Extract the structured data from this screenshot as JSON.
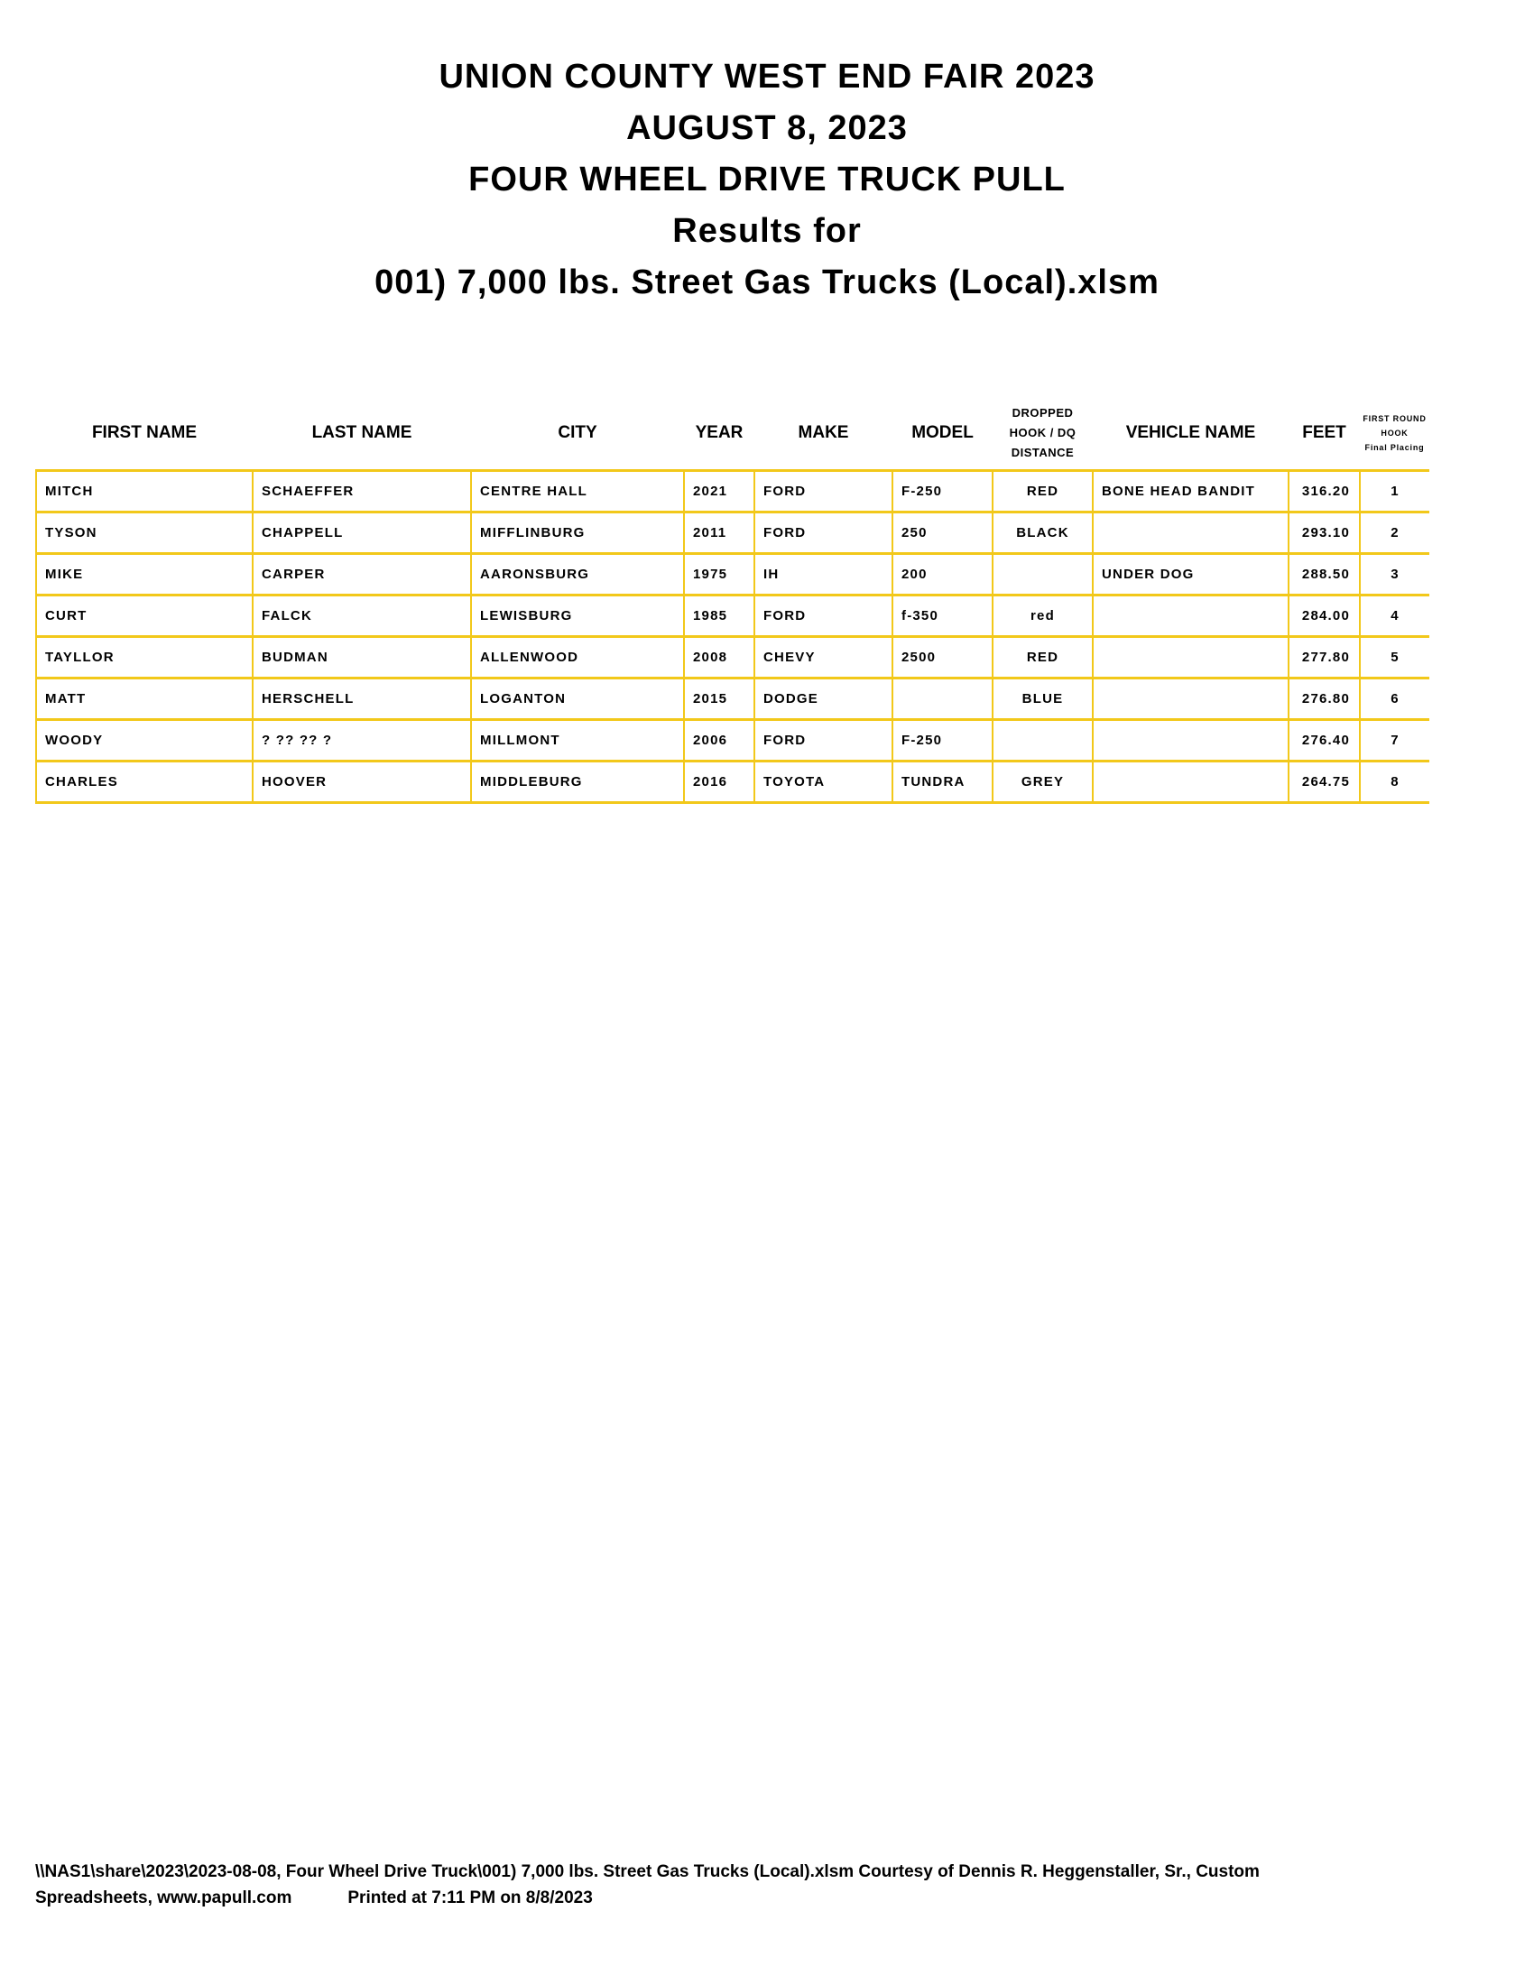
{
  "title_lines": [
    "UNION COUNTY WEST END FAIR 2023",
    "AUGUST 8, 2023",
    "FOUR WHEEL DRIVE TRUCK PULL",
    "Results for",
    "001) 7,000 lbs. Street Gas Trucks (Local).xlsm"
  ],
  "table": {
    "headers": [
      "FIRST NAME",
      "LAST NAME",
      "CITY",
      "YEAR",
      "MAKE",
      "MODEL",
      [
        "DROPPED",
        "HOOK / DQ",
        "DISTANCE"
      ],
      "VEHICLE NAME",
      "FEET",
      [
        "FIRST ROUND",
        "HOOK",
        "Final Placing"
      ]
    ],
    "rows": [
      [
        "MITCH",
        "SCHAEFFER",
        "CENTRE HALL",
        "2021",
        "FORD",
        "F-250",
        "RED",
        "BONE HEAD BANDIT",
        "316.20",
        "1"
      ],
      [
        "TYSON",
        "CHAPPELL",
        "MIFFLINBURG",
        "2011",
        "FORD",
        "250",
        "BLACK",
        "",
        "293.10",
        "2"
      ],
      [
        "MIKE",
        "CARPER",
        "AARONSBURG",
        "1975",
        "IH",
        "200",
        "",
        "UNDER DOG",
        "288.50",
        "3"
      ],
      [
        "CURT",
        "FALCK",
        "LEWISBURG",
        "1985",
        "FORD",
        "f-350",
        "red",
        "",
        "284.00",
        "4"
      ],
      [
        "TAYLLOR",
        "BUDMAN",
        "ALLENWOOD",
        "2008",
        "CHEVY",
        "2500",
        "RED",
        "",
        "277.80",
        "5"
      ],
      [
        "MATT",
        "HERSCHELL",
        "LOGANTON",
        "2015",
        "DODGE",
        "",
        "BLUE",
        "",
        "276.80",
        "6"
      ],
      [
        "WOODY",
        "? ?? ?? ?",
        "MILLMONT",
        "2006",
        "FORD",
        "F-250",
        "",
        "",
        "276.40",
        "7"
      ],
      [
        "CHARLES",
        "HOOVER",
        "MIDDLEBURG",
        "2016",
        "TOYOTA",
        "TUNDRA",
        "GREY",
        "",
        "264.75",
        "8"
      ]
    ]
  },
  "footer": {
    "line1": "\\\\NAS1\\share\\2023\\2023-08-08, Four Wheel Drive Truck\\001) 7,000 lbs. Street Gas Trucks (Local).xlsm  Courtesy of Dennis R. Heggenstaller, Sr., Custom",
    "line2_a": "Spreadsheets, www.papull.com",
    "line2_b": "Printed at 7:11 PM on 8/8/2023"
  },
  "colors": {
    "grid": "#f2c81a"
  }
}
